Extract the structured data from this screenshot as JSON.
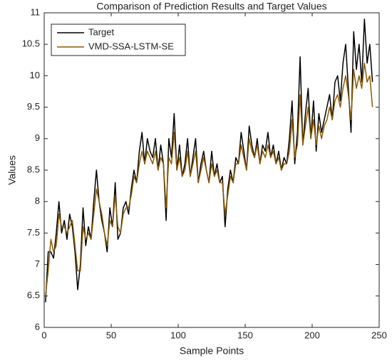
{
  "chart_data": {
    "type": "line",
    "title": "Comparison of Prediction Results and Target Values",
    "xlabel": "Sample Points",
    "ylabel": "Values",
    "xlim": [
      0,
      250
    ],
    "ylim": [
      6,
      11
    ],
    "xticks": [
      0,
      50,
      100,
      150,
      200,
      250
    ],
    "yticks": [
      6,
      6.5,
      7,
      7.5,
      8,
      8.5,
      9,
      9.5,
      10,
      10.5,
      11
    ],
    "legend": "top-left",
    "x": [
      1,
      3,
      5,
      7,
      9,
      11,
      13,
      15,
      17,
      19,
      21,
      23,
      25,
      27,
      29,
      31,
      33,
      35,
      37,
      39,
      41,
      43,
      45,
      47,
      49,
      51,
      53,
      55,
      57,
      59,
      61,
      63,
      65,
      67,
      69,
      71,
      73,
      75,
      77,
      79,
      81,
      83,
      85,
      87,
      89,
      91,
      93,
      95,
      97,
      99,
      101,
      103,
      105,
      107,
      109,
      111,
      113,
      115,
      117,
      119,
      121,
      123,
      125,
      127,
      129,
      131,
      133,
      135,
      137,
      139,
      141,
      143,
      145,
      147,
      149,
      151,
      153,
      155,
      157,
      159,
      161,
      163,
      165,
      167,
      169,
      171,
      173,
      175,
      177,
      179,
      181,
      183,
      185,
      187,
      189,
      191,
      193,
      195,
      197,
      199,
      201,
      203,
      205,
      207,
      209,
      211,
      213,
      215,
      217,
      219,
      221,
      223,
      225,
      227,
      229,
      231,
      233,
      235,
      237,
      239,
      241,
      243,
      245
    ],
    "series": [
      {
        "name": "Target",
        "color": "#000000",
        "values": [
          6.4,
          7.2,
          7.2,
          7.1,
          7.5,
          8.0,
          7.5,
          7.7,
          7.4,
          7.8,
          7.6,
          7.2,
          6.6,
          7.0,
          7.9,
          7.3,
          7.6,
          7.4,
          8.0,
          8.5,
          8.0,
          7.7,
          7.5,
          7.2,
          7.9,
          7.6,
          8.3,
          7.4,
          7.5,
          7.9,
          8.0,
          7.8,
          8.2,
          8.5,
          8.3,
          8.8,
          9.1,
          8.6,
          9.0,
          8.8,
          8.7,
          9.0,
          8.5,
          8.9,
          8.6,
          7.7,
          9.0,
          8.7,
          9.4,
          8.5,
          8.9,
          8.4,
          8.6,
          9.0,
          8.4,
          8.7,
          9.0,
          8.3,
          8.6,
          8.8,
          8.5,
          8.3,
          8.8,
          8.4,
          8.6,
          8.3,
          8.4,
          7.6,
          8.2,
          8.5,
          8.3,
          8.7,
          8.6,
          9.1,
          8.8,
          8.5,
          9.2,
          8.9,
          8.7,
          9.0,
          8.6,
          8.9,
          8.8,
          9.1,
          8.7,
          8.9,
          8.6,
          8.8,
          8.5,
          8.7,
          8.6,
          9.0,
          9.6,
          8.6,
          9.1,
          10.3,
          8.9,
          9.4,
          9.8,
          9.0,
          9.6,
          8.8,
          9.4,
          9.1,
          9.3,
          9.5,
          9.7,
          9.3,
          9.9,
          10.0,
          9.6,
          10.2,
          10.5,
          9.8,
          9.1,
          10.7,
          10.1,
          10.5,
          9.9,
          10.9,
          10.2,
          10.5,
          9.9
        ]
      },
      {
        "name": "VMD-SSA-LSTM-SE",
        "color": "#8B5A00",
        "values": [
          6.5,
          6.9,
          7.4,
          7.2,
          7.3,
          7.8,
          7.6,
          7.6,
          7.5,
          7.6,
          7.7,
          7.3,
          6.9,
          6.9,
          7.6,
          7.4,
          7.5,
          7.4,
          7.8,
          8.2,
          8.0,
          7.8,
          7.5,
          7.3,
          7.7,
          7.6,
          8.1,
          7.6,
          7.5,
          7.8,
          7.9,
          7.9,
          8.1,
          8.4,
          8.3,
          8.6,
          8.8,
          8.6,
          8.8,
          8.7,
          8.6,
          8.8,
          8.5,
          8.7,
          8.6,
          7.9,
          8.7,
          8.6,
          9.1,
          8.5,
          8.7,
          8.4,
          8.5,
          8.8,
          8.4,
          8.6,
          8.8,
          8.3,
          8.5,
          8.7,
          8.5,
          8.3,
          8.6,
          8.4,
          8.5,
          8.3,
          8.3,
          7.8,
          8.1,
          8.4,
          8.3,
          8.6,
          8.6,
          8.9,
          8.7,
          8.5,
          9.0,
          8.8,
          8.7,
          8.9,
          8.6,
          8.8,
          8.7,
          8.9,
          8.7,
          8.8,
          8.6,
          8.7,
          8.5,
          8.6,
          8.6,
          8.8,
          9.3,
          8.7,
          8.9,
          9.7,
          8.9,
          9.2,
          9.5,
          9.0,
          9.3,
          8.9,
          9.2,
          9.0,
          9.2,
          9.3,
          9.5,
          9.3,
          9.6,
          9.7,
          9.5,
          9.8,
          10.0,
          9.7,
          9.3,
          10.1,
          9.8,
          10.0,
          9.8,
          10.2,
          9.9,
          10.0,
          9.5
        ]
      }
    ]
  }
}
